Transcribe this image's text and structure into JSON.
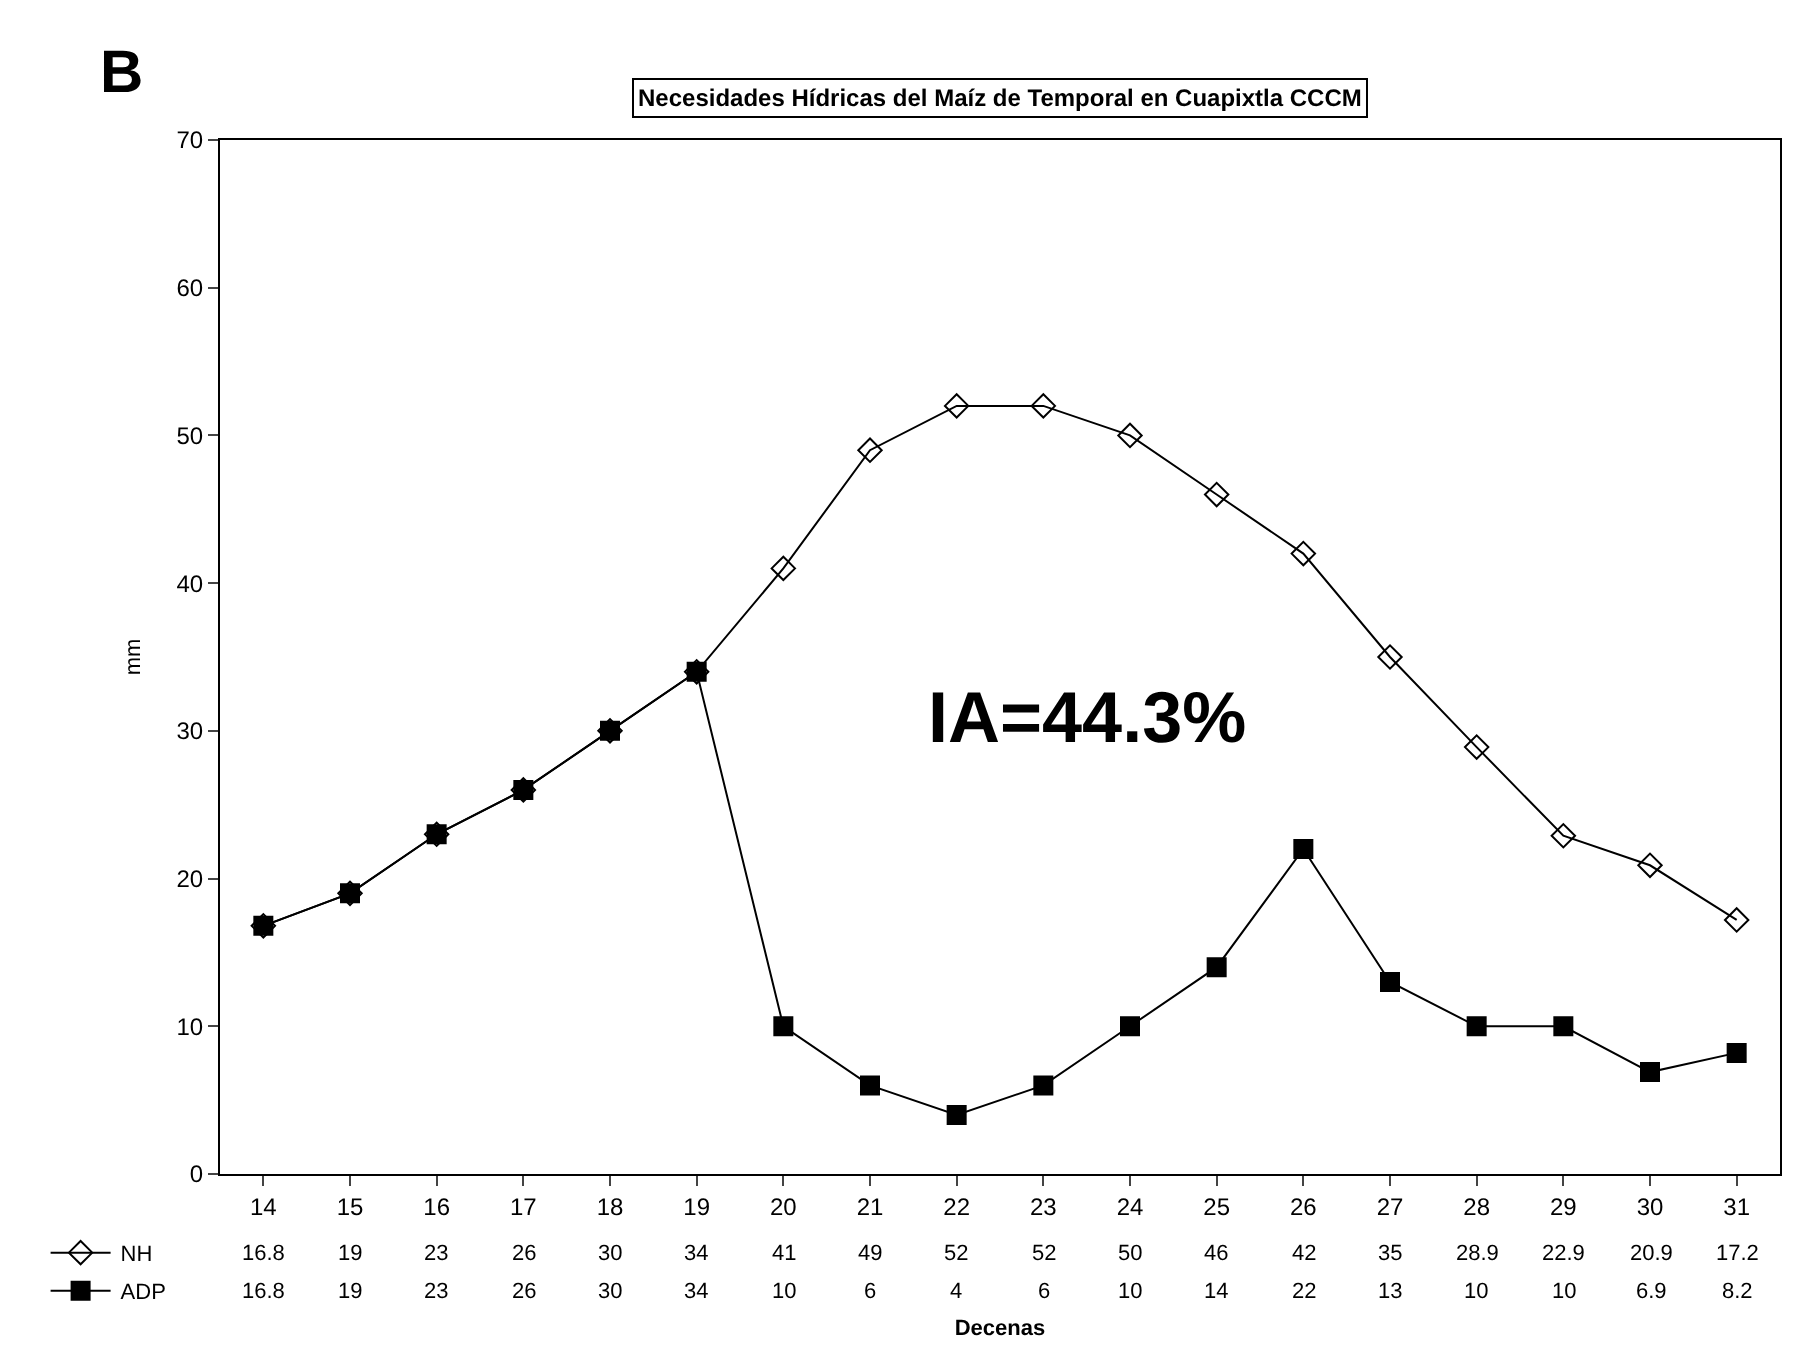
{
  "chart_data": {
    "type": "line",
    "title": "Necesidades Hídricas del Maíz de Temporal en Cuapixtla CCCM",
    "xlabel": "Decenas",
    "ylabel": "mm",
    "categories": [
      "14",
      "15",
      "16",
      "17",
      "18",
      "19",
      "20",
      "21",
      "22",
      "23",
      "24",
      "25",
      "26",
      "27",
      "28",
      "29",
      "30",
      "31"
    ],
    "series": [
      {
        "name": "NH",
        "color": "#000000",
        "marker": "diamond",
        "values": [
          16.8,
          19,
          23,
          26,
          30,
          34,
          41,
          49,
          52,
          52,
          50,
          46,
          42,
          35,
          28.9,
          22.9,
          20.9,
          17.2
        ]
      },
      {
        "name": "ADP",
        "color": "#000000",
        "marker": "square",
        "values": [
          16.8,
          19,
          23,
          26,
          30,
          34,
          10,
          6,
          4,
          6,
          10,
          14,
          22,
          13,
          10,
          10,
          6.9,
          8.2
        ]
      }
    ],
    "ylim": [
      0,
      70
    ],
    "yticks": [
      0,
      10,
      20,
      30,
      40,
      50,
      60,
      70
    ],
    "data_labels": true,
    "legend": "bottom left",
    "annotations": [
      "B",
      "IA=44.3%"
    ]
  }
}
